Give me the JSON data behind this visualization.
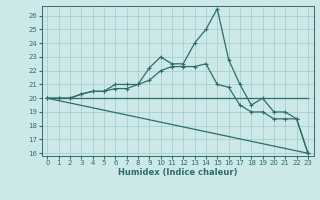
{
  "xlabel": "Humidex (Indice chaleur)",
  "background_color": "#cce8e8",
  "grid_color": "#aacece",
  "line_color": "#2e6e68",
  "xlim": [
    -0.5,
    23.5
  ],
  "ylim": [
    15.8,
    26.7
  ],
  "xticks": [
    0,
    1,
    2,
    3,
    4,
    5,
    6,
    7,
    8,
    9,
    10,
    11,
    12,
    13,
    14,
    15,
    16,
    17,
    18,
    19,
    20,
    21,
    22,
    23
  ],
  "yticks": [
    16,
    17,
    18,
    19,
    20,
    21,
    22,
    23,
    24,
    25,
    26
  ],
  "line1_x": [
    0,
    1,
    2,
    3,
    4,
    5,
    6,
    7,
    8,
    9,
    10,
    11,
    12,
    13,
    14,
    15,
    16,
    17,
    18,
    19,
    20,
    21,
    22,
    23
  ],
  "line1_y": [
    20,
    20,
    20,
    20.3,
    20.5,
    20.5,
    20.7,
    20.7,
    21.0,
    22.2,
    23.0,
    22.5,
    22.5,
    24.0,
    25.0,
    26.5,
    22.8,
    21.0,
    19.5,
    20.0,
    19.0,
    19.0,
    18.5,
    16.0
  ],
  "line2_x": [
    0,
    1,
    2,
    3,
    4,
    5,
    6,
    7,
    8,
    9,
    10,
    11,
    12,
    13,
    14,
    15,
    16,
    17,
    18,
    19,
    20,
    21,
    22,
    23
  ],
  "line2_y": [
    20,
    20,
    20,
    20.3,
    20.5,
    20.5,
    21.0,
    21.0,
    21.0,
    21.3,
    22.0,
    22.3,
    22.3,
    22.3,
    22.5,
    21.0,
    20.8,
    19.5,
    19.0,
    19.0,
    18.5,
    18.5,
    18.5,
    16.0
  ],
  "line3_x": [
    0,
    23
  ],
  "line3_y": [
    20,
    16
  ],
  "line4_x": [
    0,
    23
  ],
  "line4_y": [
    20,
    20
  ]
}
